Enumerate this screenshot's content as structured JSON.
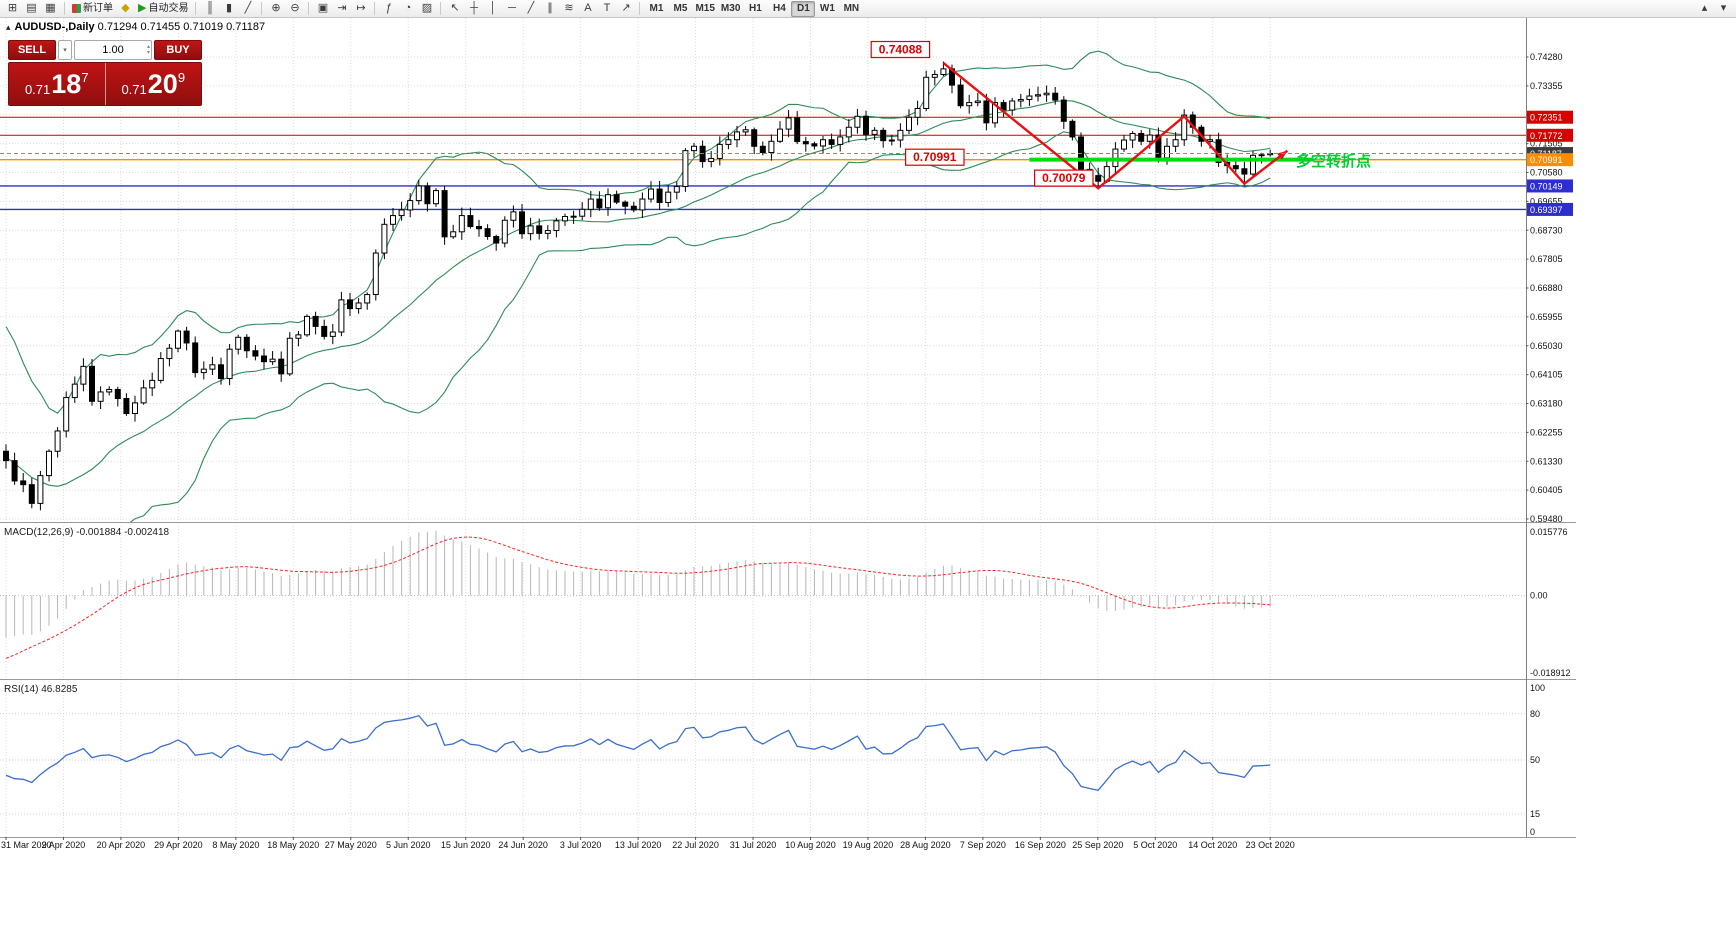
{
  "toolbar": {
    "groups": [
      {
        "items": [
          {
            "name": "new-chart-button",
            "glyph": "⊞"
          },
          {
            "name": "profiles-button",
            "glyph": "▤"
          },
          {
            "name": "market-watch-button",
            "glyph": "▦"
          }
        ]
      },
      {
        "items": [
          {
            "name": "new-order-button",
            "icon": "candle-pair",
            "label": "新订单"
          },
          {
            "name": "metaeditor-button",
            "glyph": "◆",
            "color": "#c8a200"
          },
          {
            "name": "autotrading-button",
            "glyph": "▶",
            "color": "#1f9d1f",
            "label": "自动交易"
          }
        ]
      },
      {
        "items": [
          {
            "name": "bar-chart-button",
            "glyph": "║"
          },
          {
            "name": "candlestick-chart-button",
            "glyph": "▮"
          },
          {
            "name": "line-chart-button",
            "glyph": "╱"
          }
        ]
      },
      {
        "items": [
          {
            "name": "zoom-in-button",
            "glyph": "⊕"
          },
          {
            "name": "zoom-out-button",
            "glyph": "⊖"
          }
        ]
      },
      {
        "items": [
          {
            "name": "tile-windows-button",
            "glyph": "▣"
          },
          {
            "name": "auto-scroll-button",
            "glyph": "⇥"
          },
          {
            "name": "chart-shift-button",
            "glyph": "↦"
          }
        ]
      },
      {
        "items": [
          {
            "name": "indicators-button",
            "glyph": "ƒ"
          },
          {
            "name": "periods-button",
            "glyph": "◔"
          },
          {
            "name": "templates-button",
            "glyph": "▨"
          }
        ]
      },
      {
        "items": [
          {
            "name": "cursor-button",
            "glyph": "↖"
          },
          {
            "name": "crosshair-button",
            "glyph": "┼"
          },
          {
            "name": "vertical-line-button",
            "glyph": "│"
          },
          {
            "name": "horizontal-line-button",
            "glyph": "─"
          },
          {
            "name": "trendline-button",
            "glyph": "╱"
          },
          {
            "name": "channel-button",
            "glyph": "∥"
          },
          {
            "name": "fibonacci-button",
            "glyph": "≋"
          },
          {
            "name": "text-button",
            "glyph": "A"
          },
          {
            "name": "label-button",
            "glyph": "T"
          },
          {
            "name": "arrows-button",
            "glyph": "↗"
          }
        ]
      }
    ],
    "timeframes": [
      "M1",
      "M5",
      "M15",
      "M30",
      "H1",
      "H4",
      "D1",
      "W1",
      "MN"
    ],
    "active_timeframe": "D1",
    "right_items": [
      {
        "name": "toolbar-scroll-up",
        "glyph": "▴"
      },
      {
        "name": "toolbar-scroll-down",
        "glyph": "▾"
      }
    ]
  },
  "chart": {
    "symbol_period": "AUDUSD-,Daily",
    "ohlc": "0.71294 0.71455 0.71019 0.71187"
  },
  "trade_panel": {
    "sell_label": "SELL",
    "buy_label": "BUY",
    "volume": "1.00",
    "sell_price_prefix": "0.71",
    "sell_price_big": "18",
    "sell_price_sup": "7",
    "buy_price_prefix": "0.71",
    "buy_price_big": "20",
    "buy_price_sup": "9"
  },
  "chart_data": {
    "type": "candlestick",
    "symbol": "AUDUSD",
    "timeframe": "Daily",
    "x_labels": [
      "31 Mar 2020",
      "9 Apr 2020",
      "20 Apr 2020",
      "29 Apr 2020",
      "8 May 2020",
      "18 May 2020",
      "27 May 2020",
      "5 Jun 2020",
      "15 Jun 2020",
      "24 Jun 2020",
      "3 Jul 2020",
      "13 Jul 2020",
      "22 Jul 2020",
      "31 Jul 2020",
      "10 Aug 2020",
      "19 Aug 2020",
      "28 Aug 2020",
      "7 Sep 2020",
      "16 Sep 2020",
      "25 Sep 2020",
      "5 Oct 2020",
      "14 Oct 2020",
      "23 Oct 2020"
    ],
    "price_ticks": [
      "0.74280",
      "0.73355",
      "0.72430",
      "0.71505",
      "0.70580",
      "0.69655",
      "0.68730",
      "0.67805",
      "0.66880",
      "0.65955",
      "0.65030",
      "0.64105",
      "0.63180",
      "0.62255",
      "0.61330",
      "0.60405",
      "0.59480"
    ],
    "pre_closes": [
      0.654,
      0.648,
      0.652,
      0.645,
      0.635,
      0.639,
      0.63,
      0.618,
      0.608,
      0.615,
      0.598,
      0.588,
      0.574,
      0.59,
      0.595,
      0.603,
      0.611,
      0.601,
      0.614,
      0.6165
    ],
    "closes": [
      0.6135,
      0.607,
      0.6058,
      0.5998,
      0.6087,
      0.6165,
      0.623,
      0.6337,
      0.638,
      0.6437,
      0.6325,
      0.6355,
      0.6363,
      0.6334,
      0.6286,
      0.632,
      0.6368,
      0.6392,
      0.6462,
      0.6495,
      0.655,
      0.6512,
      0.6417,
      0.6428,
      0.6442,
      0.6398,
      0.6492,
      0.653,
      0.6487,
      0.647,
      0.6452,
      0.646,
      0.6413,
      0.6527,
      0.6538,
      0.6597,
      0.6565,
      0.6533,
      0.6547,
      0.665,
      0.6622,
      0.664,
      0.6667,
      0.68,
      0.6892,
      0.692,
      0.6938,
      0.6968,
      0.7015,
      0.6958,
      0.7,
      0.6852,
      0.6868,
      0.692,
      0.6885,
      0.6878,
      0.6853,
      0.6832,
      0.6905,
      0.6932,
      0.6862,
      0.6887,
      0.6863,
      0.6872,
      0.6903,
      0.6917,
      0.6918,
      0.694,
      0.6973,
      0.6945,
      0.6987,
      0.6963,
      0.695,
      0.6938,
      0.6973,
      0.7005,
      0.6962,
      0.6995,
      0.7013,
      0.7128,
      0.7142,
      0.7093,
      0.7103,
      0.7148,
      0.7163,
      0.7188,
      0.7195,
      0.7142,
      0.7122,
      0.7158,
      0.7197,
      0.7233,
      0.7157,
      0.715,
      0.7143,
      0.7163,
      0.7148,
      0.7172,
      0.7203,
      0.7238,
      0.718,
      0.7193,
      0.716,
      0.7162,
      0.7193,
      0.7235,
      0.7263,
      0.7363,
      0.7372,
      0.739,
      0.7338,
      0.7272,
      0.7282,
      0.7287,
      0.7217,
      0.7282,
      0.7258,
      0.7287,
      0.7292,
      0.7303,
      0.7307,
      0.7312,
      0.729,
      0.7222,
      0.7172,
      0.7068,
      0.7048,
      0.703,
      0.7077,
      0.7133,
      0.7162,
      0.7183,
      0.7158,
      0.7178,
      0.7105,
      0.7142,
      0.7163,
      0.7242,
      0.7203,
      0.7158,
      0.7163,
      0.709,
      0.708,
      0.707,
      0.7053,
      0.7113,
      0.7115,
      0.71187
    ],
    "wick_overrides": {
      "109": {
        "h": 0.74135
      },
      "127": {
        "l": 0.7006
      },
      "144": {
        "l": 0.7016
      }
    },
    "bollinger": {
      "period": 20,
      "deviation": 2,
      "color": "#2e8b57"
    },
    "current_price": 0.71187,
    "current_label": "0.71187",
    "hlines": [
      {
        "price": 0.72351,
        "label": "0.72351",
        "color": "#cc0000",
        "tag": "#d60000",
        "width": 1
      },
      {
        "price": 0.71772,
        "label": "0.71772",
        "color": "#cc0000",
        "tag": "#d60000",
        "width": 1
      },
      {
        "price": 0.70991,
        "label": "0.70991",
        "color": "#ff8c00",
        "tag": "#ff8c00",
        "width": 1.4
      },
      {
        "price": 0.70149,
        "label": "0.70149",
        "color": "#2d2dd0",
        "tag": "#2d2dd0",
        "width": 1.4
      },
      {
        "price": 0.69397,
        "label": "0.69397",
        "color": "#2d2dd0",
        "tag": "#2d2dd0",
        "width": 1.4
      }
    ],
    "annotations": {
      "price_tags": [
        {
          "text": "0.74088",
          "i": 104,
          "p": 0.7452
        },
        {
          "text": "0.70991",
          "i": 108,
          "p": 0.7107
        },
        {
          "text": "0.70079",
          "i": 123,
          "p": 0.704
        }
      ],
      "zigzag": {
        "color": "#e81010",
        "points": [
          {
            "i": 109,
            "p": 0.74088
          },
          {
            "i": 127,
            "p": 0.70079
          },
          {
            "i": 137,
            "p": 0.7238
          },
          {
            "i": 144,
            "p": 0.7022
          },
          {
            "i": 149,
            "p": 0.7128
          }
        ]
      },
      "support_line": {
        "i1": 119,
        "i2": 152,
        "price": 0.70991,
        "color": "#00dd11"
      },
      "note": {
        "text": "多空转折点",
        "color": "#00cc33",
        "i": 150,
        "p": 0.7079
      }
    },
    "macd": {
      "label": "MACD(12,26,9) -0.001884 -0.002418",
      "fast": 12,
      "slow": 26,
      "signal": 9,
      "bar_color": "#b6b6b6",
      "signal_color": "#ff2222",
      "axis": {
        "max": 0.015776,
        "min": -0.018912,
        "labels": [
          "0.015776",
          "0.00",
          "-0.018912"
        ]
      }
    },
    "rsi": {
      "label": "RSI(14) 46.8285",
      "period": 14,
      "line_color": "#3b6fc9",
      "levels": [
        80,
        50,
        15
      ],
      "axis_labels": [
        "100",
        "80",
        "50",
        "15",
        "0"
      ]
    }
  }
}
